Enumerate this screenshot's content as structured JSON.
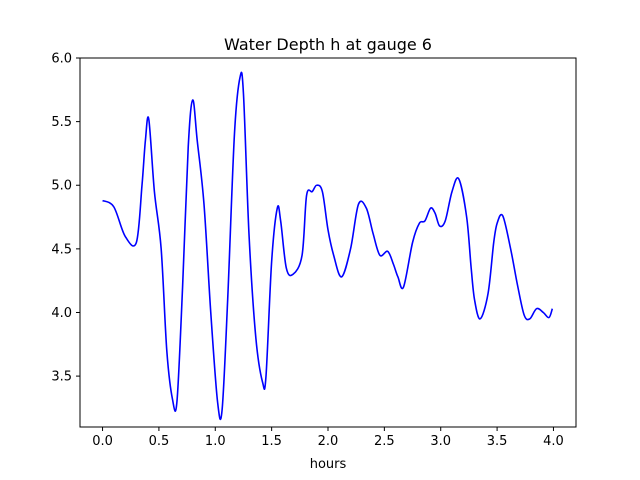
{
  "chart_data": {
    "type": "line",
    "title": "Water Depth h at gauge 6",
    "xlabel": "hours",
    "ylabel": "",
    "xlim": [
      -0.2,
      4.2
    ],
    "ylim": [
      3.1,
      6.0
    ],
    "grid": false,
    "x_ticks": [
      0.0,
      0.5,
      1.0,
      1.5,
      2.0,
      2.5,
      3.0,
      3.5,
      4.0
    ],
    "x_tick_labels": [
      "0.0",
      "0.5",
      "1.0",
      "1.5",
      "2.0",
      "2.5",
      "3.0",
      "3.5",
      "4.0"
    ],
    "y_ticks": [
      3.5,
      4.0,
      4.5,
      5.0,
      5.5,
      6.0
    ],
    "y_tick_labels": [
      "3.5",
      "4.0",
      "4.5",
      "5.0",
      "5.5",
      "6.0"
    ],
    "series": [
      {
        "color": "#0000ff",
        "x": [
          0.0,
          0.1,
          0.2,
          0.3,
          0.35,
          0.38,
          0.41,
          0.46,
          0.52,
          0.57,
          0.62,
          0.66,
          0.71,
          0.76,
          0.8,
          0.84,
          0.9,
          0.96,
          1.02,
          1.06,
          1.11,
          1.17,
          1.22,
          1.25,
          1.3,
          1.36,
          1.42,
          1.45,
          1.5,
          1.55,
          1.58,
          1.63,
          1.69,
          1.77,
          1.81,
          1.86,
          1.9,
          1.95,
          2.0,
          2.05,
          2.12,
          2.2,
          2.27,
          2.34,
          2.4,
          2.46,
          2.53,
          2.58,
          2.62,
          2.67,
          2.75,
          2.81,
          2.86,
          2.91,
          2.95,
          2.99,
          3.04,
          3.1,
          3.16,
          3.23,
          3.27,
          3.3,
          3.35,
          3.42,
          3.47,
          3.5,
          3.55,
          3.62,
          3.68,
          3.74,
          3.79,
          3.85,
          3.91,
          3.96,
          3.99
        ],
        "y": [
          4.88,
          4.83,
          4.6,
          4.55,
          5.0,
          5.35,
          5.52,
          4.95,
          4.5,
          3.7,
          3.32,
          3.3,
          4.2,
          5.3,
          5.67,
          5.35,
          4.85,
          4.0,
          3.3,
          3.23,
          4.1,
          5.4,
          5.85,
          5.72,
          4.6,
          3.8,
          3.45,
          3.5,
          4.4,
          4.82,
          4.72,
          4.35,
          4.3,
          4.45,
          4.92,
          4.95,
          5.0,
          4.95,
          4.65,
          4.45,
          4.28,
          4.5,
          4.85,
          4.82,
          4.62,
          4.45,
          4.48,
          4.38,
          4.28,
          4.2,
          4.55,
          4.7,
          4.72,
          4.82,
          4.78,
          4.68,
          4.72,
          4.95,
          5.05,
          4.75,
          4.35,
          4.1,
          3.95,
          4.15,
          4.55,
          4.7,
          4.76,
          4.5,
          4.22,
          3.98,
          3.95,
          4.03,
          4.0,
          3.96,
          4.03
        ]
      }
    ]
  }
}
